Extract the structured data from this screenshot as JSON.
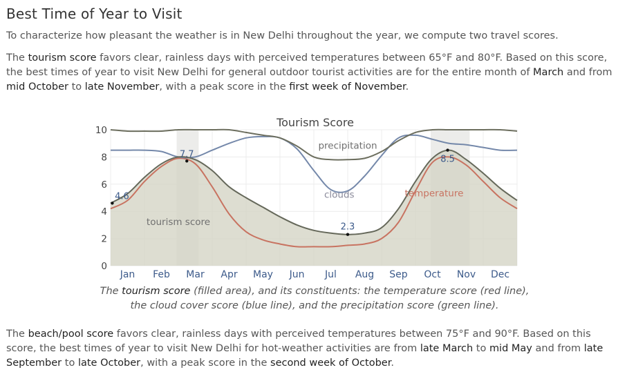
{
  "page": {
    "title": "Best Time of Year to Visit",
    "intro": "To characterize how pleasant the weather is in New Delhi throughout the year, we compute two travel scores.",
    "tourism_paragraph": {
      "p1": "The ",
      "e1": "tourism score",
      "p2": " favors clear, rainless days with perceived temperatures between 65°F and 80°F. Based on this score, the best times of year to visit New Delhi for general outdoor tourist activities are for the entire month of ",
      "e2": "March",
      "p3": " and from ",
      "e3": "mid October",
      "p4": " to ",
      "e4": "late November",
      "p5": ", with a peak score in the ",
      "e5": "first week of November",
      "p6": "."
    },
    "caption": {
      "p1": "The ",
      "e1": "tourism score",
      "p2": " (filled area), and its constituents: the temperature score (red line), the cloud cover score (blue line), and the precipitation score (green line)."
    },
    "beach_paragraph": {
      "p1": "The ",
      "e1": "beach/pool score",
      "p2": " favors clear, rainless days with perceived temperatures between 75°F and 90°F. Based on this score, the best times of year to visit New Delhi for hot-weather activities are from ",
      "e2": "late March",
      "p3": " to ",
      "e3": "mid May",
      "p4": " and from ",
      "e4": "late September",
      "p5": " to ",
      "e5": "late October",
      "p6": ", with a peak score in the ",
      "e6": "second week of October",
      "p7": "."
    }
  },
  "chart_data": {
    "type": "area",
    "title": "Tourism Score",
    "xlabel": "",
    "ylabel": "",
    "x_unit": "month",
    "xlim": [
      0,
      12
    ],
    "ylim": [
      0,
      10
    ],
    "y_ticks": [
      "0",
      "2",
      "4",
      "6",
      "8",
      "10"
    ],
    "x_tick_labels": [
      "Jan",
      "Feb",
      "Mar",
      "Apr",
      "May",
      "Jun",
      "Jul",
      "Aug",
      "Sep",
      "Oct",
      "Nov",
      "Dec"
    ],
    "grid": true,
    "highlight_bands": [
      [
        1.95,
        2.6
      ],
      [
        9.45,
        10.6
      ]
    ],
    "x": [
      0,
      0.5,
      1,
      1.5,
      2,
      2.5,
      3,
      3.5,
      4,
      4.5,
      5,
      5.5,
      6,
      6.5,
      7,
      7.5,
      8,
      8.5,
      9,
      9.5,
      10,
      10.5,
      11,
      11.5,
      12
    ],
    "series": [
      {
        "name": "tourism score",
        "color": "#65685a",
        "fill": "#d4d4c4",
        "values": [
          4.6,
          5.3,
          6.5,
          7.5,
          8.0,
          7.8,
          7.0,
          5.8,
          5.0,
          4.3,
          3.6,
          3.0,
          2.6,
          2.4,
          2.3,
          2.4,
          2.8,
          4.2,
          6.2,
          7.9,
          8.5,
          7.8,
          6.8,
          5.7,
          4.8
        ]
      },
      {
        "name": "temperature",
        "color": "#c87361",
        "values": [
          4.2,
          4.8,
          6.2,
          7.3,
          7.9,
          7.5,
          5.8,
          3.8,
          2.5,
          1.9,
          1.6,
          1.4,
          1.4,
          1.4,
          1.5,
          1.6,
          2.0,
          3.2,
          5.5,
          7.6,
          8.0,
          7.4,
          6.2,
          5.0,
          4.2
        ]
      },
      {
        "name": "clouds",
        "color": "#7488aa",
        "values": [
          8.5,
          8.5,
          8.5,
          8.4,
          8.0,
          8.0,
          8.5,
          9.0,
          9.4,
          9.5,
          9.4,
          8.6,
          7.0,
          5.6,
          5.5,
          6.6,
          8.1,
          9.4,
          9.6,
          9.3,
          9.0,
          8.9,
          8.7,
          8.5,
          8.5
        ]
      },
      {
        "name": "precipitation",
        "color": "#6c6e5e",
        "values": [
          10.0,
          9.9,
          9.9,
          9.9,
          10.0,
          10.0,
          10.0,
          10.0,
          9.8,
          9.6,
          9.4,
          8.8,
          8.0,
          7.8,
          7.8,
          7.9,
          8.4,
          9.2,
          9.8,
          10.0,
          10.0,
          10.0,
          10.0,
          10.0,
          9.9
        ]
      }
    ],
    "annotations": [
      {
        "x": 0.05,
        "y": 4.6,
        "label": "4.6"
      },
      {
        "x": 2.25,
        "y": 7.7,
        "label": "7.7"
      },
      {
        "x": 7.0,
        "y": 2.3,
        "label": "2.3"
      },
      {
        "x": 9.95,
        "y": 8.5,
        "label": "8.5"
      }
    ],
    "series_labels": [
      {
        "text": "precipitation",
        "x": 7.0,
        "y": 8.6,
        "color": "#6f6f6f"
      },
      {
        "text": "clouds",
        "x": 6.75,
        "y": 5.0,
        "color": "#8a8a9a"
      },
      {
        "text": "temperature",
        "x": 9.55,
        "y": 5.1,
        "color": "#c87361"
      },
      {
        "text": "tourism score",
        "x": 2.0,
        "y": 3.0,
        "color": "#6f6f6f"
      }
    ]
  }
}
